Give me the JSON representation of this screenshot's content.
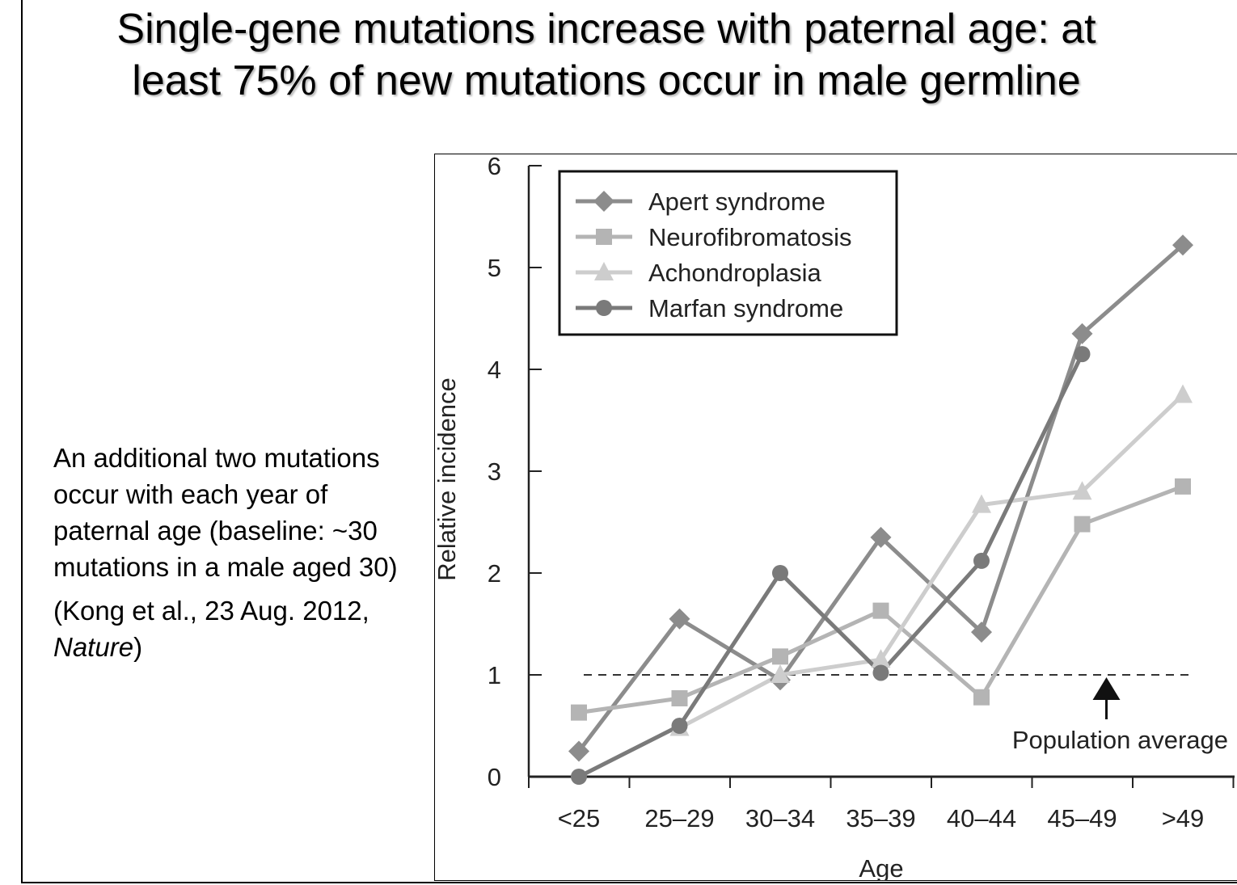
{
  "slide": {
    "title_line1": "Single-gene mutations increase with paternal age: at",
    "title_line2": "least 75% of new mutations occur in male germline",
    "note_paragraph": "An additional two mutations occur with each year of paternal age (baseline: ~30 mutations in a male aged 30)",
    "citation_prefix": "(Kong et al., 23 Aug. 2012, ",
    "citation_journal": "Nature",
    "citation_suffix": ")"
  },
  "chart_data": {
    "type": "line",
    "xlabel": "Age",
    "ylabel": "Relative incidence",
    "categories": [
      "<25",
      "25–29",
      "30–34",
      "35–39",
      "40–44",
      "45–49",
      ">49"
    ],
    "ylim": [
      0,
      6
    ],
    "yticks": [
      0,
      1,
      2,
      3,
      4,
      5,
      6
    ],
    "grid": false,
    "legend_position": "top-left",
    "series": [
      {
        "name": "Apert syndrome",
        "marker": "diamond",
        "color": "#8c8c8c",
        "values": [
          0.25,
          1.55,
          0.95,
          2.35,
          1.42,
          4.35,
          5.22
        ]
      },
      {
        "name": "Neurofibromatosis",
        "marker": "square",
        "color": "#b4b4b4",
        "values": [
          0.63,
          0.77,
          1.18,
          1.63,
          0.78,
          2.48,
          2.85
        ]
      },
      {
        "name": "Achondroplasia",
        "marker": "triangle",
        "color": "#cdcdcd",
        "values": [
          null,
          0.48,
          1.0,
          1.15,
          2.67,
          2.8,
          3.75
        ]
      },
      {
        "name": "Marfan syndrome",
        "marker": "circle",
        "color": "#7a7a7a",
        "values": [
          0.0,
          0.5,
          2.0,
          1.02,
          2.12,
          4.15,
          null
        ]
      }
    ],
    "reference_line": {
      "value": 1.0,
      "style": "dashed",
      "label": "Population average"
    }
  }
}
